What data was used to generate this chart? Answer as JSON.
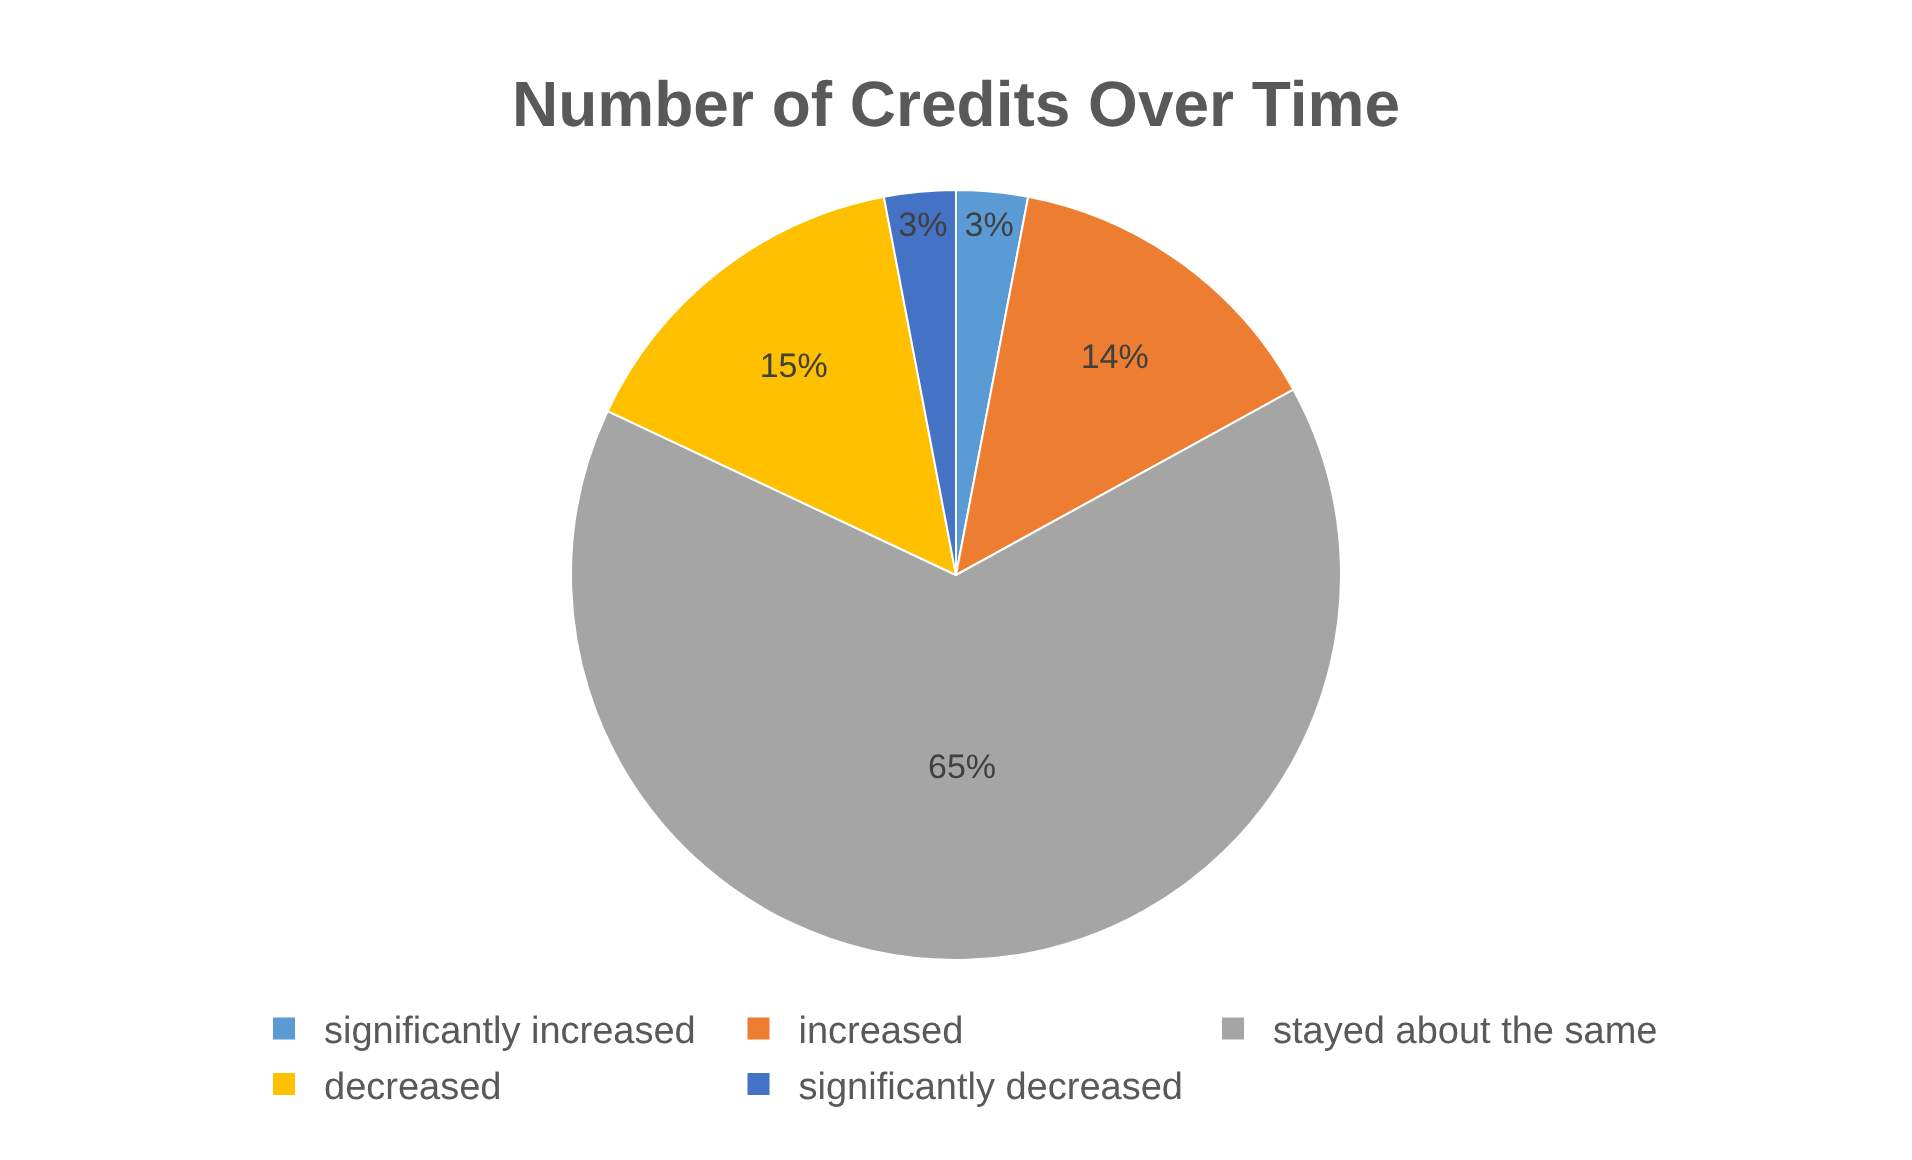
{
  "chart_data": {
    "type": "pie",
    "title": "Number of Credits Over Time",
    "categories": [
      "significantly increased",
      "increased",
      "stayed about the same",
      "decreased",
      "significantly decreased"
    ],
    "values": [
      3,
      14,
      65,
      15,
      3
    ],
    "value_labels": [
      "3%",
      "14%",
      "65%",
      "15%",
      "3%"
    ],
    "colors": [
      "#5b9bd5",
      "#ed7d31",
      "#a5a5a5",
      "#ffc000",
      "#4472c4"
    ],
    "legend": "bottom"
  }
}
